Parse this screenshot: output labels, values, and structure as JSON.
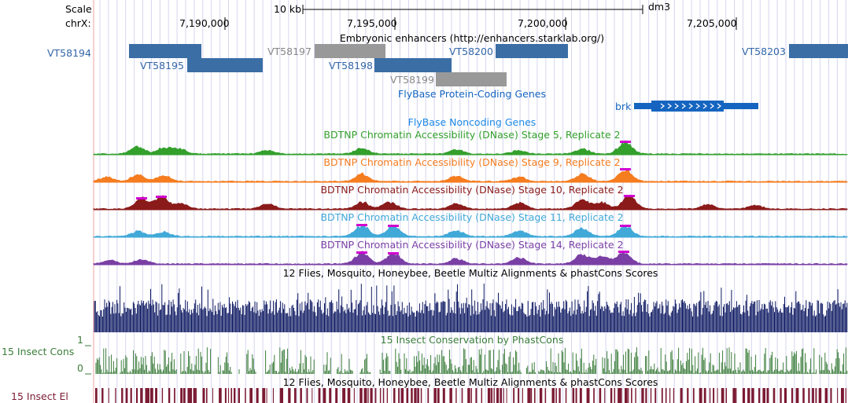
{
  "ruler": {
    "scale_label": "Scale",
    "chrom_label": "chrX:",
    "scalebar_label": "10 kb",
    "assembly": "dm3",
    "ticks": [
      "7,190,000",
      "7,195,000",
      "7,200,000",
      "7,205,000"
    ]
  },
  "tracks": {
    "enhancers": {
      "title": "Embryonic enhancers (http://enhancers.starklab.org/)",
      "items": [
        {
          "name": "VT58194",
          "color": "#3a6ea5"
        },
        {
          "name": "VT58195",
          "color": "#3a6ea5"
        },
        {
          "name": "VT58197",
          "color": "#999999"
        },
        {
          "name": "VT58198",
          "color": "#3a6ea5"
        },
        {
          "name": "VT58199",
          "color": "#999999"
        },
        {
          "name": "VT58200",
          "color": "#3a6ea5"
        },
        {
          "name": "VT58203",
          "color": "#3a6ea5"
        }
      ]
    },
    "coding": {
      "title": "FlyBase Protein-Coding Genes",
      "gene": "brk",
      "color": "#1565c0"
    },
    "noncoding": {
      "title": "FlyBase Noncoding Genes",
      "color": "#1e88e5"
    },
    "dnase": [
      {
        "title": "BDTNP Chromatin Accessibility (DNase) Stage 5, Replicate 2",
        "color": "#33a02c"
      },
      {
        "title": "BDTNP Chromatin Accessibility (DNase) Stage 9, Replicate 2",
        "color": "#f57c1f"
      },
      {
        "title": "BDTNP Chromatin Accessibility (DNase) Stage 10, Replicate 2",
        "color": "#8b1a1a"
      },
      {
        "title": "BDTNP Chromatin Accessibility (DNase) Stage 11, Replicate 2",
        "color": "#41a9d8"
      },
      {
        "title": "BDTNP Chromatin Accessibility (DNase) Stage 14, Replicate 2",
        "color": "#7a3fa5"
      }
    ],
    "multiz": {
      "title": "12 Flies, Mosquito, Honeybee, Beetle Multiz Alignments & phastCons Scores",
      "color": "#0b1760"
    },
    "phastcons": {
      "title": "15 Insect Conservation by PhastCons",
      "side_label": "15 Insect Cons",
      "axis_max": "1",
      "axis_min": "0",
      "color": "#3b7d3b"
    },
    "elements": {
      "title": "12 Flies, Mosquito, Honeybee, Beetle Multiz Alignments & phastCons Scores",
      "side_label": "15 Insect El",
      "color": "#7b1a33"
    }
  },
  "colors": {
    "label_blue": "#3366a8",
    "gray_label": "#888888",
    "peak_magenta": "#d000d0",
    "gridline": "#d6d6f0",
    "left_border": "#f0a0a0"
  }
}
